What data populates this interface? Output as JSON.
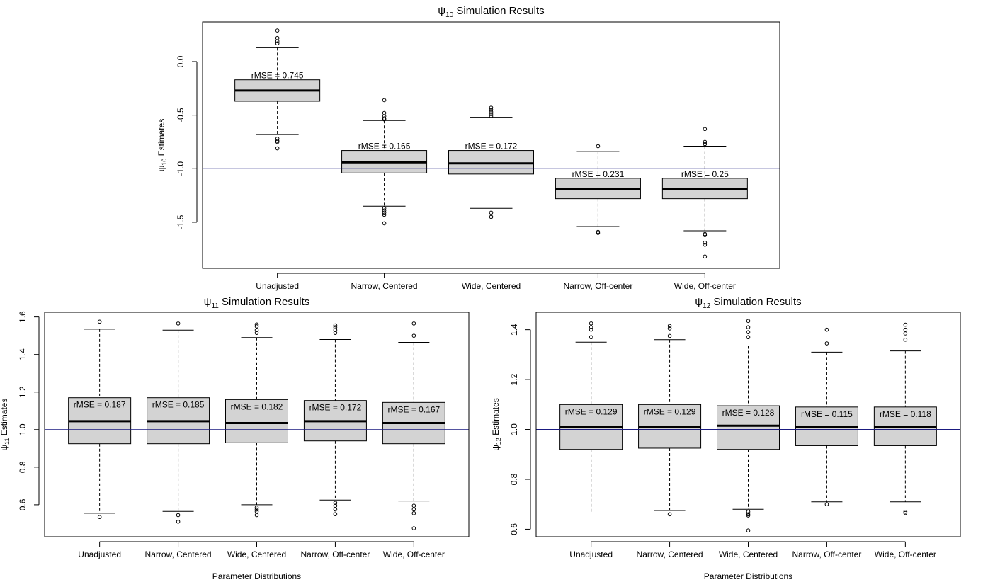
{
  "chart_data": [
    {
      "type": "box",
      "title": "ψ10 Simulation Results",
      "title_symbol": "ψ",
      "title_sub": "10",
      "title_rest": " Simulation Results",
      "ylabel_symbol": "ψ",
      "ylabel_sub": "10",
      "ylabel_rest": " Estimates",
      "xlabel": "",
      "ylim": [
        -1.93,
        0.37
      ],
      "yticks": [
        0.0,
        -0.5,
        -1.0,
        -1.5
      ],
      "ytick_labels": [
        "0.0",
        "-0.5",
        "-1.0",
        "-1.5"
      ],
      "reference_line": -1.0,
      "reference_color": "#1a1a80",
      "box_fill": "#d3d3d3",
      "categories": [
        "Unadjusted",
        "Narrow, Centered",
        "Wide, Centered",
        "Narrow, Off-center",
        "Wide, Off-center"
      ],
      "boxes": [
        {
          "whisker_low": -0.68,
          "q1": -0.37,
          "median": -0.27,
          "q3": -0.17,
          "whisker_high": 0.13,
          "outliers": [
            0.29,
            0.22,
            0.19,
            0.17,
            -0.72,
            -0.74,
            -0.75,
            -0.81
          ],
          "label": "rMSE = 0.745"
        },
        {
          "whisker_low": -1.35,
          "q1": -1.04,
          "median": -0.94,
          "q3": -0.83,
          "whisker_high": -0.55,
          "outliers": [
            -0.36,
            -0.48,
            -0.51,
            -0.53,
            -0.54,
            -1.37,
            -1.39,
            -1.41,
            -1.43,
            -1.51
          ],
          "label": "rMSE = 0.165"
        },
        {
          "whisker_low": -1.37,
          "q1": -1.05,
          "median": -0.95,
          "q3": -0.83,
          "whisker_high": -0.52,
          "outliers": [
            -0.43,
            -0.45,
            -0.47,
            -0.49,
            -0.51,
            -1.41,
            -1.45
          ],
          "label": "rMSE = 0.172"
        },
        {
          "whisker_low": -1.54,
          "q1": -1.28,
          "median": -1.19,
          "q3": -1.09,
          "whisker_high": -0.84,
          "outliers": [
            -0.79,
            -1.59,
            -1.6
          ],
          "label": "rMSE = 0.231"
        },
        {
          "whisker_low": -1.58,
          "q1": -1.28,
          "median": -1.19,
          "q3": -1.09,
          "whisker_high": -0.79,
          "outliers": [
            -0.63,
            -0.75,
            -0.77,
            -1.61,
            -1.62,
            -1.69,
            -1.71,
            -1.82
          ],
          "label": "rMSE = 0.25"
        }
      ]
    },
    {
      "type": "box",
      "title": "ψ11 Simulation Results",
      "title_symbol": "ψ",
      "title_sub": "11",
      "title_rest": " Simulation Results",
      "ylabel_symbol": "ψ",
      "ylabel_sub": "11",
      "ylabel_rest": " Estimates",
      "xlabel": "Parameter Distributions",
      "ylim": [
        0.43,
        1.625
      ],
      "yticks": [
        0.6,
        0.8,
        1.0,
        1.2,
        1.4,
        1.6
      ],
      "ytick_labels": [
        "0.6",
        "0.8",
        "1.0",
        "1.2",
        "1.4",
        "1.6"
      ],
      "reference_line": 1.0,
      "reference_color": "#1a1a80",
      "box_fill": "#d3d3d3",
      "categories": [
        "Unadjusted",
        "Narrow, Centered",
        "Wide, Centered",
        "Narrow, Off-center",
        "Wide, Off-center"
      ],
      "boxes": [
        {
          "whisker_low": 0.555,
          "q1": 0.925,
          "median": 1.045,
          "q3": 1.17,
          "whisker_high": 1.535,
          "outliers": [
            1.575,
            0.535
          ],
          "label": "rMSE = 0.187"
        },
        {
          "whisker_low": 0.565,
          "q1": 0.925,
          "median": 1.045,
          "q3": 1.17,
          "whisker_high": 1.53,
          "outliers": [
            1.565,
            0.545,
            0.51
          ],
          "label": "rMSE = 0.185"
        },
        {
          "whisker_low": 0.6,
          "q1": 0.93,
          "median": 1.035,
          "q3": 1.16,
          "whisker_high": 1.49,
          "outliers": [
            1.56,
            1.55,
            1.53,
            1.515,
            0.585,
            0.575,
            0.565,
            0.545
          ],
          "label": "rMSE = 0.182"
        },
        {
          "whisker_low": 0.625,
          "q1": 0.94,
          "median": 1.045,
          "q3": 1.155,
          "whisker_high": 1.48,
          "outliers": [
            1.555,
            1.545,
            1.53,
            1.515,
            0.61,
            0.595,
            0.575,
            0.55
          ],
          "label": "rMSE = 0.172"
        },
        {
          "whisker_low": 0.62,
          "q1": 0.925,
          "median": 1.035,
          "q3": 1.145,
          "whisker_high": 1.465,
          "outliers": [
            1.565,
            1.5,
            0.595,
            0.575,
            0.555,
            0.475
          ],
          "label": "rMSE = 0.167"
        }
      ]
    },
    {
      "type": "box",
      "title": "ψ12 Simulation Results",
      "title_symbol": "ψ",
      "title_sub": "12",
      "title_rest": " Simulation Results",
      "ylabel_symbol": "ψ",
      "ylabel_sub": "12",
      "ylabel_rest": " Estimates",
      "xlabel": "Parameter Distributions",
      "ylim": [
        0.57,
        1.47
      ],
      "yticks": [
        0.6,
        0.8,
        1.0,
        1.2,
        1.4
      ],
      "ytick_labels": [
        "0.6",
        "0.8",
        "1.0",
        "1.2",
        "1.4"
      ],
      "reference_line": 1.0,
      "reference_color": "#1a1a80",
      "box_fill": "#d3d3d3",
      "categories": [
        "Unadjusted",
        "Narrow, Centered",
        "Wide, Centered",
        "Narrow, Off-center",
        "Wide, Off-center"
      ],
      "boxes": [
        {
          "whisker_low": 0.665,
          "q1": 0.92,
          "median": 1.01,
          "q3": 1.1,
          "whisker_high": 1.35,
          "outliers": [
            1.425,
            1.41,
            1.4,
            1.37
          ],
          "label": "rMSE = 0.129"
        },
        {
          "whisker_low": 0.675,
          "q1": 0.925,
          "median": 1.01,
          "q3": 1.1,
          "whisker_high": 1.36,
          "outliers": [
            1.415,
            1.405,
            1.375,
            0.66
          ],
          "label": "rMSE = 0.129"
        },
        {
          "whisker_low": 0.68,
          "q1": 0.92,
          "median": 1.015,
          "q3": 1.095,
          "whisker_high": 1.335,
          "outliers": [
            1.435,
            1.41,
            1.39,
            1.37,
            0.67,
            0.66,
            0.655,
            0.595
          ],
          "label": "rMSE = 0.128"
        },
        {
          "whisker_low": 0.71,
          "q1": 0.935,
          "median": 1.01,
          "q3": 1.09,
          "whisker_high": 1.31,
          "outliers": [
            1.4,
            1.345,
            0.7
          ],
          "label": "rMSE = 0.115"
        },
        {
          "whisker_low": 0.71,
          "q1": 0.935,
          "median": 1.01,
          "q3": 1.09,
          "whisker_high": 1.315,
          "outliers": [
            1.42,
            1.4,
            1.385,
            1.36,
            0.67,
            0.665
          ],
          "label": "rMSE = 0.118"
        }
      ]
    }
  ]
}
